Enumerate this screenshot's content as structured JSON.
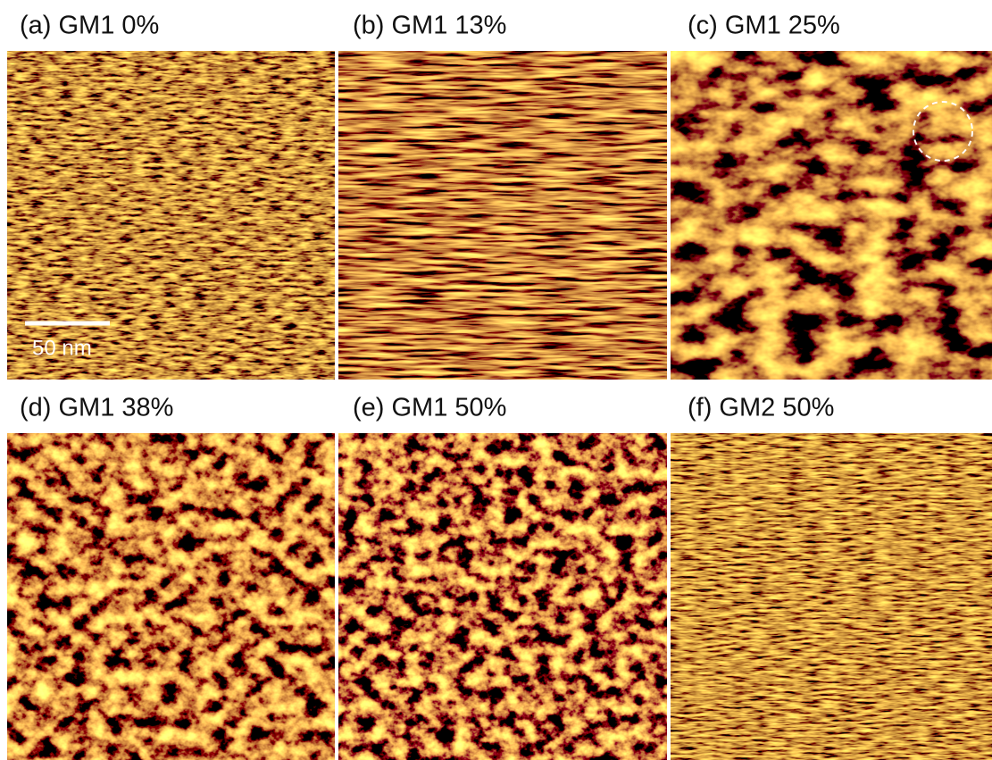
{
  "panels": [
    {
      "label": "(a) GM1 0%"
    },
    {
      "label": "(b) GM1 13%"
    },
    {
      "label": "(c) GM1 25%"
    },
    {
      "label": "(d) GM1 38%"
    },
    {
      "label": "(e) GM1 50%"
    },
    {
      "label": "(f) GM2 50%"
    }
  ],
  "scale_bar": "50 nm"
}
